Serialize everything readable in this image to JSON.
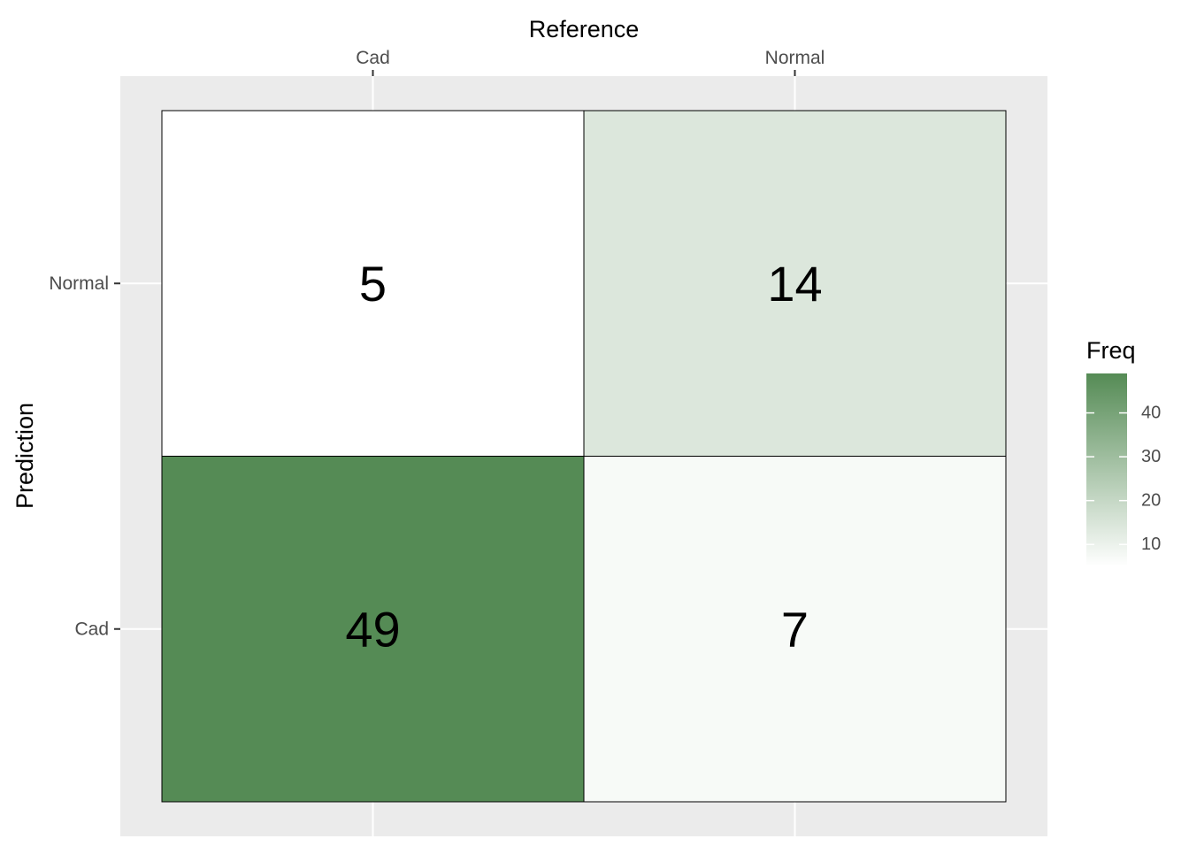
{
  "chart_data": {
    "type": "heatmap",
    "xlabel": "Reference",
    "ylabel": "Prediction",
    "x_categories": [
      "Cad",
      "Normal"
    ],
    "y_categories": [
      "Cad",
      "Normal"
    ],
    "x_axis_position": "top",
    "cells": [
      {
        "x": "Cad",
        "y": "Normal",
        "value": 5
      },
      {
        "x": "Normal",
        "y": "Normal",
        "value": 14
      },
      {
        "x": "Cad",
        "y": "Cad",
        "value": 49
      },
      {
        "x": "Normal",
        "y": "Cad",
        "value": 7
      }
    ],
    "legend": {
      "title": "Freq",
      "placement": "right",
      "ticks": [
        10,
        20,
        30,
        40
      ],
      "range": [
        5,
        49
      ],
      "color_low": "#ffffff",
      "color_high": "#558b55"
    },
    "grid": true,
    "panel_background": "#ebebeb",
    "grid_color": "#ffffff",
    "cell_border_color": "#000000"
  }
}
